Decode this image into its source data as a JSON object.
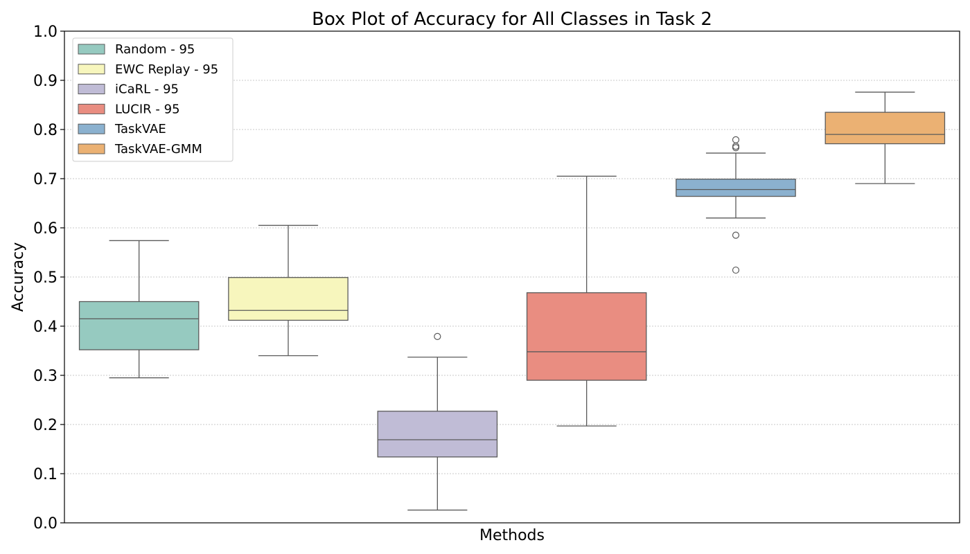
{
  "chart_data": {
    "type": "box",
    "title": "Box Plot of Accuracy for All Classes in Task 2",
    "xlabel": "Methods",
    "ylabel": "Accuracy",
    "ylim": [
      0.0,
      1.0
    ],
    "yticks": [
      "0.0",
      "0.1",
      "0.2",
      "0.3",
      "0.4",
      "0.5",
      "0.6",
      "0.7",
      "0.8",
      "0.9",
      "1.0"
    ],
    "grid": true,
    "legend_position": "top-left",
    "series": [
      {
        "name": "Random - 95",
        "color": "#96cac0",
        "whisker_low": 0.295,
        "q1": 0.352,
        "median": 0.415,
        "q3": 0.45,
        "whisker_high": 0.574,
        "outliers": []
      },
      {
        "name": "EWC Replay - 95",
        "color": "#f7f6bd",
        "whisker_low": 0.34,
        "q1": 0.412,
        "median": 0.432,
        "q3": 0.499,
        "whisker_high": 0.605,
        "outliers": []
      },
      {
        "name": "iCaRL - 95",
        "color": "#c0bcd6",
        "whisker_low": 0.026,
        "q1": 0.134,
        "median": 0.169,
        "q3": 0.227,
        "whisker_high": 0.337,
        "outliers": [
          0.379
        ]
      },
      {
        "name": "LUCIR - 95",
        "color": "#e98d81",
        "whisker_low": 0.197,
        "q1": 0.29,
        "median": 0.348,
        "q3": 0.468,
        "whisker_high": 0.705,
        "outliers": []
      },
      {
        "name": "TaskVAE",
        "color": "#8bb1cf",
        "whisker_low": 0.62,
        "q1": 0.664,
        "median": 0.678,
        "q3": 0.699,
        "whisker_high": 0.752,
        "outliers": [
          0.514,
          0.585,
          0.763,
          0.766,
          0.779
        ]
      },
      {
        "name": "TaskVAE-GMM",
        "color": "#ebb173",
        "whisker_low": 0.69,
        "q1": 0.771,
        "median": 0.79,
        "q3": 0.835,
        "whisker_high": 0.876,
        "outliers": []
      }
    ]
  }
}
